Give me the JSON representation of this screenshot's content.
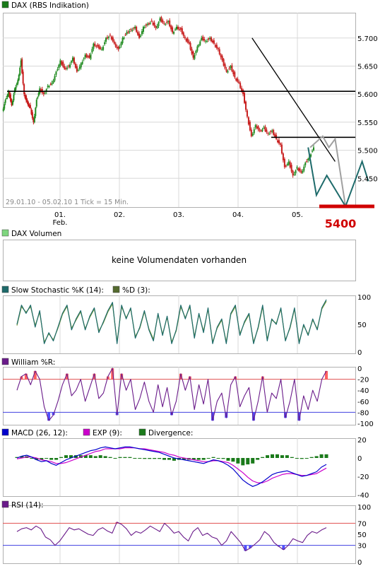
{
  "colors": {
    "border": "#b0b0b0",
    "grid": "#d8d8d8",
    "candle_up": "#1f8a1f",
    "candle_down": "#c81e1e",
    "trend": "#000000",
    "scenario_grey": "#a0a0a0",
    "scenario_teal": "#1e6b6b",
    "target_red": "#d00000",
    "stoch_k": "#1e6b6b",
    "stoch_d": "#7a9a3a",
    "williams": "#6a1b8a",
    "macd": "#0000cc",
    "exp": "#cc00cc",
    "divergence": "#1a7a1a",
    "rsi": "#6a1b8a",
    "upper_band": "#e05050",
    "lower_band": "#4040e0",
    "fill_upper": "#ff6060",
    "fill_lower": "#5050ff"
  },
  "price_panel": {
    "legend_label": "DAX (RBS Indikation)",
    "legend_color": "#1a7a1a",
    "info_text": "29.01.10 - 05.02.10   1 Tick = 15 Min.",
    "target_label": "5400",
    "x_ticks": [
      "01.",
      "02.",
      "03.",
      "04.",
      "05."
    ],
    "x_sub_label": "Feb."
  },
  "volume_panel": {
    "legend_label": "DAX Volumen",
    "legend_color": "#7fd67f",
    "message": "keine Volumendaten vorhanden"
  },
  "stoch_panel": {
    "legend_k": "Slow Stochastic %K (14):",
    "legend_d": "%D (3):",
    "legend_k_color": "#1e6b6b",
    "legend_d_color": "#556b2f"
  },
  "williams_panel": {
    "legend": "William %R:",
    "legend_color": "#6a1b8a"
  },
  "macd_panel": {
    "legend_macd": "MACD (26, 12):",
    "legend_exp": "EXP (9):",
    "legend_div": "Divergence:",
    "legend_macd_color": "#0000cc",
    "legend_exp_color": "#cc00cc",
    "legend_div_color": "#1a7a1a"
  },
  "rsi_panel": {
    "legend": "RSI (14):",
    "legend_color": "#6a1b8a"
  },
  "chart_data": [
    {
      "type": "candlestick",
      "title": "DAX (RBS Indikation)",
      "x_categories": [
        "01.",
        "02.",
        "03.",
        "04.",
        "05."
      ],
      "ylim": [
        5400,
        5740
      ],
      "y_ticks": [
        "5.700",
        "5.650",
        "5.600",
        "5.550",
        "5.500",
        "5.450"
      ],
      "price_path": [
        [
          0,
          5570
        ],
        [
          0.03,
          5590
        ],
        [
          0.06,
          5605
        ],
        [
          0.09,
          5580
        ],
        [
          0.12,
          5610
        ],
        [
          0.15,
          5625
        ],
        [
          0.18,
          5660
        ],
        [
          0.21,
          5600
        ],
        [
          0.24,
          5585
        ],
        [
          0.27,
          5575
        ],
        [
          0.3,
          5550
        ],
        [
          0.33,
          5590
        ],
        [
          0.36,
          5610
        ],
        [
          0.4,
          5600
        ],
        [
          0.44,
          5615
        ],
        [
          0.48,
          5620
        ],
        [
          0.52,
          5640
        ],
        [
          0.56,
          5660
        ],
        [
          0.6,
          5645
        ],
        [
          0.64,
          5650
        ],
        [
          0.68,
          5665
        ],
        [
          0.72,
          5640
        ],
        [
          0.76,
          5655
        ],
        [
          0.8,
          5670
        ],
        [
          0.84,
          5665
        ],
        [
          0.88,
          5690
        ],
        [
          0.92,
          5685
        ],
        [
          0.96,
          5680
        ],
        [
          1.0,
          5700
        ],
        [
          1.04,
          5705
        ],
        [
          1.08,
          5690
        ],
        [
          1.12,
          5680
        ],
        [
          1.16,
          5700
        ],
        [
          1.2,
          5710
        ],
        [
          1.24,
          5715
        ],
        [
          1.28,
          5720
        ],
        [
          1.32,
          5700
        ],
        [
          1.36,
          5720
        ],
        [
          1.4,
          5725
        ],
        [
          1.44,
          5730
        ],
        [
          1.48,
          5718
        ],
        [
          1.52,
          5735
        ],
        [
          1.56,
          5725
        ],
        [
          1.6,
          5730
        ],
        [
          1.64,
          5710
        ],
        [
          1.68,
          5720
        ],
        [
          1.72,
          5715
        ],
        [
          1.76,
          5700
        ],
        [
          1.8,
          5690
        ],
        [
          1.84,
          5665
        ],
        [
          1.88,
          5685
        ],
        [
          1.92,
          5700
        ],
        [
          1.96,
          5695
        ],
        [
          2.0,
          5700
        ],
        [
          2.04,
          5690
        ],
        [
          2.08,
          5680
        ],
        [
          2.12,
          5660
        ],
        [
          2.16,
          5640
        ],
        [
          2.2,
          5650
        ],
        [
          2.24,
          5630
        ],
        [
          2.28,
          5620
        ],
        [
          2.32,
          5600
        ],
        [
          2.36,
          5560
        ],
        [
          2.4,
          5525
        ],
        [
          2.44,
          5545
        ],
        [
          2.48,
          5535
        ],
        [
          2.52,
          5540
        ],
        [
          2.56,
          5530
        ],
        [
          2.6,
          5535
        ],
        [
          2.64,
          5520
        ],
        [
          2.68,
          5510
        ],
        [
          2.72,
          5470
        ],
        [
          2.76,
          5480
        ],
        [
          2.8,
          5455
        ],
        [
          2.84,
          5470
        ],
        [
          2.88,
          5460
        ],
        [
          2.92,
          5478
        ],
        [
          2.96,
          5490
        ],
        [
          3.0,
          5505
        ]
      ],
      "horizontal_lines": [
        5605,
        5523
      ],
      "downtrend_line": [
        [
          2.4,
          5700
        ],
        [
          3.2,
          5480
        ]
      ],
      "scenario_grey": [
        [
          2.96,
          5505
        ],
        [
          3.08,
          5525
        ],
        [
          3.14,
          5505
        ],
        [
          3.2,
          5520
        ],
        [
          3.3,
          5400
        ]
      ],
      "scenario_teal": [
        [
          2.94,
          5505
        ],
        [
          3.02,
          5420
        ],
        [
          3.12,
          5455
        ],
        [
          3.3,
          5400
        ],
        [
          3.46,
          5480
        ],
        [
          3.52,
          5445
        ]
      ],
      "target_level": 5400
    },
    {
      "type": "text",
      "title": "DAX Volumen",
      "value": "keine Volumendaten vorhanden"
    },
    {
      "type": "line",
      "title": "Slow Stochastic %K (14) / %D (3)",
      "ylim": [
        0,
        100
      ],
      "y_ticks": [
        100,
        50,
        0
      ],
      "series": [
        {
          "name": "%K",
          "values": [
            50,
            85,
            70,
            85,
            45,
            75,
            15,
            35,
            20,
            45,
            70,
            85,
            40,
            60,
            75,
            40,
            65,
            80,
            35,
            55,
            75,
            90,
            15,
            85,
            60,
            80,
            25,
            45,
            75,
            40,
            20,
            70,
            30,
            65,
            15,
            40,
            85,
            60,
            85,
            25,
            70,
            35,
            80,
            15,
            45,
            60,
            15,
            70,
            85,
            30,
            55,
            70,
            15,
            45,
            85,
            20,
            60,
            50,
            80,
            20,
            45,
            80,
            15,
            50,
            30,
            60,
            40,
            80,
            95
          ]
        },
        {
          "name": "%D",
          "values": [
            48,
            82,
            72,
            82,
            48,
            72,
            18,
            33,
            22,
            43,
            68,
            83,
            43,
            58,
            73,
            42,
            63,
            78,
            38,
            53,
            73,
            87,
            18,
            82,
            62,
            78,
            28,
            43,
            73,
            42,
            23,
            68,
            32,
            63,
            18,
            38,
            82,
            62,
            82,
            28,
            68,
            38,
            78,
            18,
            43,
            58,
            18,
            68,
            82,
            33,
            53,
            68,
            18,
            43,
            82,
            23,
            58,
            52,
            78,
            22,
            43,
            78,
            18,
            48,
            32,
            58,
            42,
            78,
            92
          ]
        }
      ]
    },
    {
      "type": "line",
      "title": "William %R",
      "ylim": [
        -100,
        0
      ],
      "y_ticks": [
        0,
        -20,
        -40,
        -60,
        -80,
        -100
      ],
      "reference_lines": [
        -20,
        -80
      ],
      "series": [
        {
          "name": "William %R",
          "values": [
            -40,
            -15,
            -10,
            -30,
            -5,
            -20,
            -70,
            -95,
            -85,
            -60,
            -30,
            -10,
            -50,
            -40,
            -20,
            -60,
            -35,
            -10,
            -55,
            -45,
            -15,
            0,
            -85,
            -10,
            -40,
            -20,
            -75,
            -55,
            -25,
            -60,
            -80,
            -30,
            -70,
            -35,
            -85,
            -60,
            -10,
            -40,
            -15,
            -75,
            -30,
            -65,
            -20,
            -95,
            -60,
            -45,
            -90,
            -30,
            -15,
            -70,
            -50,
            -35,
            -95,
            -60,
            -15,
            -80,
            -45,
            -55,
            -20,
            -90,
            -60,
            -20,
            -95,
            -50,
            -75,
            -40,
            -60,
            -20,
            -5
          ]
        }
      ]
    },
    {
      "type": "line",
      "title": "MACD (26, 12) / EXP (9) / Divergence",
      "ylim": [
        -40,
        20
      ],
      "y_ticks": [
        20,
        0,
        -20,
        -40
      ],
      "series": [
        {
          "name": "MACD",
          "values": [
            0,
            2,
            3,
            1,
            -2,
            -4,
            -3,
            -6,
            -8,
            -5,
            -2,
            0,
            2,
            4,
            6,
            8,
            9,
            11,
            12,
            11,
            10,
            11,
            12,
            12,
            11,
            10,
            9,
            8,
            7,
            6,
            4,
            2,
            0,
            -1,
            -2,
            -3,
            -4,
            -5,
            -6,
            -4,
            -2,
            -3,
            -5,
            -8,
            -12,
            -18,
            -24,
            -28,
            -31,
            -29,
            -26,
            -22,
            -18,
            -16,
            -15,
            -14,
            -16,
            -18,
            -20,
            -19,
            -17,
            -15,
            -10,
            -7
          ]
        },
        {
          "name": "EXP",
          "values": [
            -1,
            0,
            1,
            1,
            0,
            -2,
            -3,
            -4,
            -6,
            -6,
            -5,
            -3,
            -1,
            1,
            3,
            5,
            7,
            8,
            10,
            10,
            10,
            10,
            11,
            11,
            11,
            10,
            10,
            9,
            8,
            7,
            6,
            4,
            3,
            1,
            0,
            -1,
            -2,
            -3,
            -4,
            -4,
            -3,
            -3,
            -4,
            -5,
            -8,
            -12,
            -16,
            -21,
            -25,
            -27,
            -27,
            -25,
            -22,
            -20,
            -18,
            -17,
            -17,
            -18,
            -19,
            -19,
            -18,
            -17,
            -14,
            -11
          ]
        },
        {
          "name": "Divergence",
          "values": [
            1,
            2,
            2,
            0,
            -2,
            -2,
            0,
            -2,
            -2,
            1,
            3,
            3,
            3,
            3,
            3,
            3,
            2,
            3,
            2,
            1,
            0,
            1,
            1,
            1,
            0,
            0,
            -1,
            -1,
            -1,
            -1,
            -2,
            -2,
            -3,
            -2,
            -2,
            -2,
            -2,
            -2,
            -2,
            0,
            1,
            0,
            -1,
            -3,
            -4,
            -6,
            -8,
            -7,
            -6,
            -2,
            1,
            3,
            4,
            4,
            3,
            3,
            1,
            0,
            -1,
            0,
            1,
            2,
            4,
            4
          ]
        }
      ]
    },
    {
      "type": "line",
      "title": "RSI (14)",
      "ylim": [
        0,
        100
      ],
      "y_ticks": [
        100,
        70,
        50,
        30,
        0
      ],
      "reference_lines": [
        70,
        30
      ],
      "series": [
        {
          "name": "RSI",
          "values": [
            55,
            60,
            62,
            58,
            65,
            60,
            45,
            40,
            30,
            38,
            50,
            62,
            58,
            60,
            55,
            50,
            48,
            58,
            62,
            56,
            52,
            72,
            68,
            60,
            48,
            55,
            52,
            58,
            65,
            60,
            55,
            70,
            62,
            52,
            55,
            45,
            38,
            55,
            62,
            48,
            52,
            45,
            42,
            30,
            38,
            55,
            45,
            35,
            20,
            25,
            32,
            40,
            55,
            48,
            35,
            28,
            22,
            30,
            42,
            38,
            35,
            48,
            55,
            52,
            58,
            62
          ]
        }
      ]
    }
  ]
}
